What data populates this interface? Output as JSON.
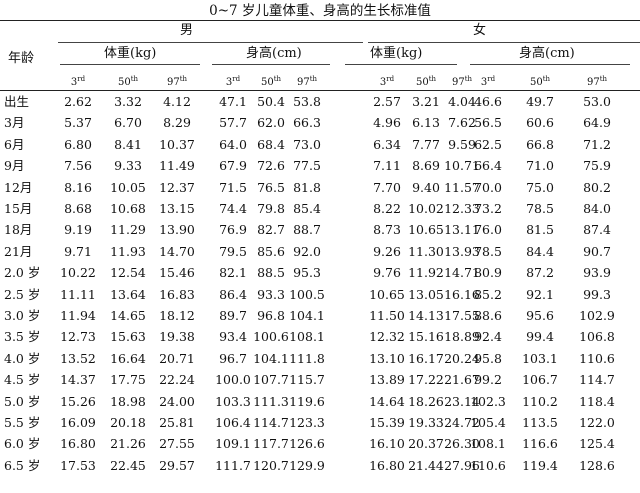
{
  "title": "0~7 岁儿童体重、身高的生长标准值",
  "header": {
    "age_label": "年龄",
    "male": "男",
    "female": "女",
    "weight": "体重(kg)",
    "height": "身高(cm)",
    "percentiles": [
      {
        "num": "3",
        "sup": "rd"
      },
      {
        "num": "50",
        "sup": "th"
      },
      {
        "num": "97",
        "sup": "th"
      }
    ]
  },
  "rows": [
    {
      "age": "出生",
      "values": [
        "2.62",
        "3.32",
        "4.12",
        "47.1",
        "50.4",
        "53.8",
        "2.57",
        "3.21",
        "4.04",
        "46.6",
        "49.7",
        "53.0"
      ]
    },
    {
      "age": "3月",
      "values": [
        "5.37",
        "6.70",
        "8.29",
        "57.7",
        "62.0",
        "66.3",
        "4.96",
        "6.13",
        "7.62",
        "56.5",
        "60.6",
        "64.9"
      ]
    },
    {
      "age": "6月",
      "values": [
        "6.80",
        "8.41",
        "10.37",
        "64.0",
        "68.4",
        "73.0",
        "6.34",
        "7.77",
        "9.59",
        "62.5",
        "66.8",
        "71.2"
      ]
    },
    {
      "age": "9月",
      "values": [
        "7.56",
        "9.33",
        "11.49",
        "67.9",
        "72.6",
        "77.5",
        "7.11",
        "8.69",
        "10.71",
        "66.4",
        "71.0",
        "75.9"
      ]
    },
    {
      "age": "12月",
      "values": [
        "8.16",
        "10.05",
        "12.37",
        "71.5",
        "76.5",
        "81.8",
        "7.70",
        "9.40",
        "11.57",
        "70.0",
        "75.0",
        "80.2"
      ]
    },
    {
      "age": "15月",
      "values": [
        "8.68",
        "10.68",
        "13.15",
        "74.4",
        "79.8",
        "85.4",
        "8.22",
        "10.02",
        "12.33",
        "73.2",
        "78.5",
        "84.0"
      ]
    },
    {
      "age": "18月",
      "values": [
        "9.19",
        "11.29",
        "13.90",
        "76.9",
        "82.7",
        "88.7",
        "8.73",
        "10.65",
        "13.11",
        "76.0",
        "81.5",
        "87.4"
      ]
    },
    {
      "age": "21月",
      "values": [
        "9.71",
        "11.93",
        "14.70",
        "79.5",
        "85.6",
        "92.0",
        "9.26",
        "11.30",
        "13.93",
        "78.5",
        "84.4",
        "90.7"
      ]
    },
    {
      "age": "2.0 岁",
      "values": [
        "10.22",
        "12.54",
        "15.46",
        "82.1",
        "88.5",
        "95.3",
        "9.76",
        "11.92",
        "14.71",
        "80.9",
        "87.2",
        "93.9"
      ]
    },
    {
      "age": "2.5 岁",
      "values": [
        "11.11",
        "13.64",
        "16.83",
        "86.4",
        "93.3",
        "100.5",
        "10.65",
        "13.05",
        "16.16",
        "85.2",
        "92.1",
        "99.3"
      ]
    },
    {
      "age": "3.0 岁",
      "values": [
        "11.94",
        "14.65",
        "18.12",
        "89.7",
        "96.8",
        "104.1",
        "11.50",
        "14.13",
        "17.55",
        "88.6",
        "95.6",
        "102.9"
      ]
    },
    {
      "age": "3.5 岁",
      "values": [
        "12.73",
        "15.63",
        "19.38",
        "93.4",
        "100.6",
        "108.1",
        "12.32",
        "15.16",
        "18.89",
        "92.4",
        "99.4",
        "106.8"
      ]
    },
    {
      "age": "4.0 岁",
      "values": [
        "13.52",
        "16.64",
        "20.71",
        "96.7",
        "104.1",
        "111.8",
        "13.10",
        "16.17",
        "20.24",
        "95.8",
        "103.1",
        "110.6"
      ]
    },
    {
      "age": "4.5 岁",
      "values": [
        "14.37",
        "17.75",
        "22.24",
        "100.0",
        "107.7",
        "115.7",
        "13.89",
        "17.22",
        "21.67",
        "99.2",
        "106.7",
        "114.7"
      ]
    },
    {
      "age": "5.0 岁",
      "values": [
        "15.26",
        "18.98",
        "24.00",
        "103.3",
        "111.3",
        "119.6",
        "14.64",
        "18.26",
        "23.14",
        "102.3",
        "110.2",
        "118.4"
      ]
    },
    {
      "age": "5.5 岁",
      "values": [
        "16.09",
        "20.18",
        "25.81",
        "106.4",
        "114.7",
        "123.3",
        "15.39",
        "19.33",
        "24.72",
        "105.4",
        "113.5",
        "122.0"
      ]
    },
    {
      "age": "6.0 岁",
      "values": [
        "16.80",
        "21.26",
        "27.55",
        "109.1",
        "117.7",
        "126.6",
        "16.10",
        "20.37",
        "26.30",
        "108.1",
        "116.6",
        "125.4"
      ]
    },
    {
      "age": "6.5 岁",
      "values": [
        "17.53",
        "22.45",
        "29.57",
        "111.7",
        "120.7",
        "129.9",
        "16.80",
        "21.44",
        "27.96",
        "110.6",
        "119.4",
        "128.6"
      ]
    }
  ]
}
